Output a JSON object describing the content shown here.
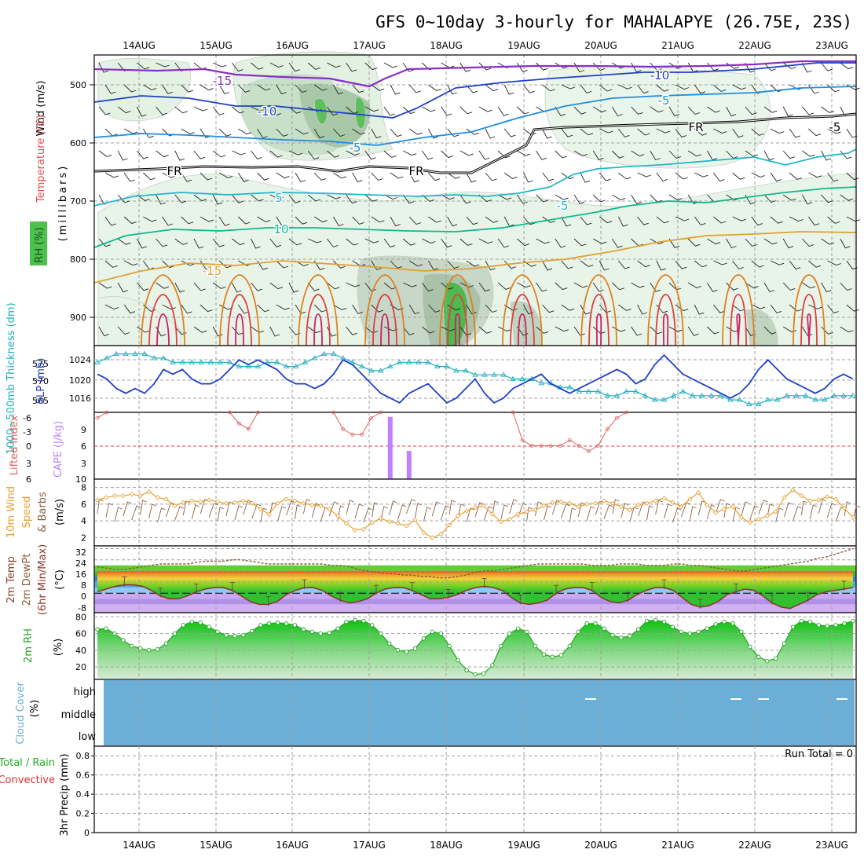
{
  "title": "GFS 0~10day 3-hourly for MAHALAPYE (26.75E, 23S)",
  "dates": [
    "14AUG",
    "15AUG",
    "16AUG",
    "17AUG",
    "18AUG",
    "19AUG",
    "20AUG",
    "21AUG",
    "22AUG",
    "23AUG"
  ],
  "colors": {
    "rh_fill": "#4cc24c",
    "cape": "#c080ff",
    "lifted": "#e06060",
    "slp": "#1f3fc8",
    "thickness": "#20b0c0",
    "wind_speed": "#e8a030",
    "barb": "#8a6040",
    "temp_line": "#8b3a2a",
    "dewpt": "#8b5a3a",
    "rh2m": "#1fa81f",
    "cloud": "#6baed6",
    "grid": "#a0a0a0"
  },
  "panels": {
    "upper": {
      "ylabel_wind": "Wind (m/s)",
      "ylabel_temp": "Temperature (°C)",
      "ylabel_rh": "RH (%)",
      "ylabel_axis": "(millibars)",
      "pressure_ticks": [
        500,
        600,
        700,
        800,
        900
      ],
      "isotherm_labels": [
        "-15",
        "-10",
        "-10",
        "-5",
        "-5",
        "FR",
        "FR",
        "FR",
        "-5",
        "5",
        "10",
        "-15",
        "-5"
      ]
    },
    "slp": {
      "ylabel_thick": "1000~500mb Thickness (dm)",
      "ylabel_slp": "SLP (mb)",
      "left_ticks": [
        565,
        570,
        575
      ],
      "right_ticks": [
        1016,
        1020,
        1024
      ]
    },
    "cape": {
      "ylabel_li": "Lifted Index",
      "ylabel_cape": "CAPE (J/kg)",
      "left_ticks": [
        "-6",
        "-3",
        "0",
        "3",
        "6"
      ],
      "right_ticks": [
        "9",
        "6",
        "3",
        "10"
      ]
    },
    "wind10m": {
      "ylabel_a": "10m Wind",
      "ylabel_b": "Speed",
      "ylabel_c": "& Barbs",
      "ylabel_unit": "(m/s)",
      "ticks": [
        2,
        4,
        6,
        8
      ]
    },
    "temp2m": {
      "ylabel_a": "2m Temp",
      "ylabel_b": "2m DewPt",
      "ylabel_c": "(6hr Min/Max)",
      "ylabel_unit": "(°C)",
      "ticks": [
        "32",
        "24",
        "16",
        "8",
        "0",
        "-8"
      ]
    },
    "rh2m": {
      "ylabel": "2m RH",
      "ylabel_unit": "(%)",
      "ticks": [
        20,
        40,
        60,
        80
      ]
    },
    "cloud": {
      "ylabel": "Cloud Cover",
      "ylabel_unit": "(%)",
      "levels": [
        "high",
        "middle",
        "low"
      ]
    },
    "precip": {
      "ylabel_a": "Total / Rain",
      "ylabel_b": "Convective",
      "ylabel_c": "3hr Precip (mm)",
      "ticks": [
        "0",
        "0.2",
        "0.4",
        "0.6",
        "0.8"
      ],
      "run_total": "Run Total = 0"
    }
  },
  "chart_data": [
    {
      "type": "line",
      "name": "slp",
      "title": "SLP (mb)",
      "ylim": [
        1013,
        1027
      ],
      "values": [
        1019,
        1020,
        1022,
        1023,
        1022,
        1023,
        1021,
        1018,
        1019,
        1018,
        1020,
        1021,
        1021,
        1020,
        1018,
        1016,
        1017,
        1016,
        1017,
        1018,
        1020,
        1021,
        1021,
        1022,
        1021,
        1019,
        1016,
        1017,
        1019,
        1021,
        1023,
        1024,
        1025,
        1023,
        1022,
        1021,
        1023,
        1025,
        1024,
        1022,
        1020,
        1023,
        1025,
        1024,
        1022,
        1021,
        1020,
        1019,
        1021,
        1022,
        1023,
        1022,
        1021,
        1020,
        1019,
        1018,
        1019,
        1021,
        1020,
        1017,
        1015,
        1017,
        1019,
        1020,
        1021,
        1022,
        1023,
        1024,
        1023,
        1021,
        1018,
        1016,
        1018,
        1020,
        1021,
        1022,
        1023,
        1022,
        1020,
        1019,
        1020
      ]
    },
    {
      "type": "line",
      "name": "thickness",
      "title": "1000~500mb Thickness (dm)",
      "ylim": [
        562,
        578
      ],
      "values": [
        566,
        565,
        564,
        564,
        564,
        564,
        565,
        565,
        566,
        566,
        566,
        566,
        566,
        566,
        566,
        567,
        567,
        567,
        566,
        566,
        567,
        567,
        566,
        565,
        564,
        564,
        565,
        566,
        567,
        568,
        568,
        567,
        566,
        566,
        566,
        566,
        567,
        567,
        568,
        568,
        569,
        569,
        569,
        569,
        570,
        570,
        570,
        571,
        571,
        572,
        572,
        573,
        573,
        573,
        574,
        574,
        573,
        573,
        574,
        575,
        575,
        574,
        573,
        574,
        574,
        574,
        574,
        575,
        575,
        576,
        576,
        575,
        575,
        574,
        574,
        574,
        575,
        575,
        574,
        574,
        574
      ]
    },
    {
      "type": "line",
      "name": "lifted_index",
      "title": "Lifted Index",
      "ylim": [
        6,
        -6
      ],
      "values": [
        5,
        6,
        6,
        6,
        6,
        6,
        6,
        6,
        6,
        6,
        6,
        6,
        6,
        6,
        6,
        4,
        3,
        6,
        6,
        6,
        6,
        6,
        6,
        6,
        6,
        6,
        3,
        2,
        2,
        5,
        6,
        6,
        6,
        6,
        6,
        6,
        6,
        6,
        6,
        6,
        6,
        6,
        6,
        6,
        6,
        1,
        0,
        0,
        0,
        0,
        1,
        0,
        -1,
        0,
        3,
        5,
        6,
        6,
        6,
        6,
        6,
        6,
        6,
        6,
        6,
        6,
        6,
        6,
        6,
        6,
        6,
        6,
        6,
        6,
        6,
        6,
        6,
        6,
        6,
        6,
        6
      ]
    },
    {
      "type": "bar",
      "name": "cape",
      "title": "CAPE (J/kg)",
      "x": [
        31,
        33
      ],
      "values": [
        11,
        5
      ]
    },
    {
      "type": "line",
      "name": "wind_speed_10m",
      "title": "10m Wind Speed (m/s)",
      "ylim": [
        1,
        9
      ],
      "values": [
        3.5,
        3.2,
        3.0,
        3.0,
        2.8,
        3.0,
        2.5,
        3.2,
        3.4,
        4.2,
        3.8,
        3.6,
        3.7,
        3.5,
        3.7,
        3.9,
        3.8,
        3.6,
        3.9,
        4.6,
        5.2,
        3.9,
        3.4,
        3.6,
        3.9,
        4.1,
        4.2,
        4.6,
        5.4,
        6.3,
        7.1,
        7.0,
        6.2,
        5.7,
        6.1,
        6.3,
        6.6,
        5.9,
        7.4,
        8.0,
        7.6,
        6.5,
        5.4,
        4.8,
        4.4,
        4.2,
        5.2,
        6.1,
        5.8,
        5.2,
        4.9,
        4.7,
        4.2,
        3.8,
        3.7,
        3.9,
        4.3,
        4.0,
        3.9,
        3.6,
        3.9,
        4.3,
        4.7,
        4.1,
        3.9,
        3.6,
        3.3,
        3.8,
        4.3,
        3.4,
        2.6,
        4.1,
        5.0,
        4.6,
        4.3,
        5.6,
        6.2,
        5.8,
        5.4,
        4.9,
        3.2,
        2.3,
        3.0,
        3.6,
        3.5,
        3.1,
        3.4,
        4.5,
        5.6
      ]
    },
    {
      "type": "line",
      "name": "temp_2m",
      "title": "2m Temp (°C)",
      "ylim": [
        -14,
        34
      ],
      "values": [
        19,
        17,
        15,
        14,
        14,
        15,
        18,
        22,
        24,
        24,
        22,
        19,
        17,
        16,
        16,
        18,
        22,
        26,
        28,
        28,
        26,
        21,
        18,
        16,
        16,
        18,
        22,
        25,
        27,
        26,
        24,
        20,
        17,
        16,
        16,
        18,
        21,
        24,
        24,
        23,
        21,
        18,
        16,
        15,
        16,
        18,
        23,
        27,
        28,
        27,
        25,
        20,
        17,
        16,
        16,
        18,
        23,
        26,
        27,
        25,
        21,
        18,
        16,
        16,
        18,
        23,
        28,
        30,
        29,
        26,
        21,
        19,
        17,
        18,
        22,
        27,
        30,
        31,
        28,
        25,
        21,
        19,
        18,
        17,
        16
      ]
    },
    {
      "type": "line",
      "name": "dewpoint_2m",
      "title": "2m DewPt (°C)",
      "ylim": [
        -14,
        34
      ],
      "values": [
        1,
        2,
        3,
        3,
        2,
        1,
        0,
        -1,
        -1,
        -1,
        -1,
        -2,
        -3,
        -3,
        -3,
        -4,
        -4,
        -3,
        -2,
        -1,
        -1,
        -1,
        -1,
        -1,
        -1,
        -1,
        0,
        0,
        1,
        3,
        4,
        5,
        6,
        6,
        7,
        7,
        8,
        8,
        9,
        9,
        8,
        7,
        5,
        4,
        4,
        3,
        2,
        1,
        0,
        -1,
        -1,
        -1,
        -1,
        -1,
        -1,
        0,
        0,
        0,
        -1,
        -1,
        -1,
        0,
        0,
        0,
        -1,
        -1,
        0,
        0,
        1,
        2,
        3,
        4,
        4,
        3,
        2,
        1,
        0,
        -1,
        -2,
        -3,
        -5,
        -6,
        -8,
        -10,
        -12
      ]
    },
    {
      "type": "area",
      "name": "rh_2m",
      "title": "2m RH (%)",
      "ylim": [
        5,
        85
      ],
      "values": [
        25,
        24,
        30,
        38,
        45,
        48,
        50,
        49,
        42,
        30,
        20,
        16,
        17,
        22,
        28,
        32,
        33,
        32,
        27,
        20,
        18,
        17,
        18,
        20,
        25,
        28,
        30,
        29,
        24,
        16,
        14,
        15,
        20,
        30,
        42,
        50,
        52,
        48,
        36,
        28,
        30,
        45,
        62,
        74,
        79,
        78,
        68,
        45,
        30,
        24,
        28,
        45,
        55,
        58,
        56,
        45,
        28,
        18,
        18,
        24,
        32,
        35,
        33,
        25,
        15,
        14,
        16,
        22,
        28,
        30,
        28,
        24,
        19,
        16,
        18,
        28,
        46,
        58,
        63,
        60,
        42,
        22,
        15,
        16,
        20,
        21,
        20,
        18,
        15
      ]
    },
    {
      "type": "table",
      "name": "cloud_cover",
      "title": "Cloud Cover (%)",
      "rows": [
        "high",
        "middle",
        "low"
      ],
      "note": "fully overcast (100%) at all levels throughout the period"
    },
    {
      "type": "bar",
      "name": "precip_3hr",
      "title": "3hr Precip (mm)",
      "ylim": [
        0,
        0.9
      ],
      "values": []
    }
  ]
}
